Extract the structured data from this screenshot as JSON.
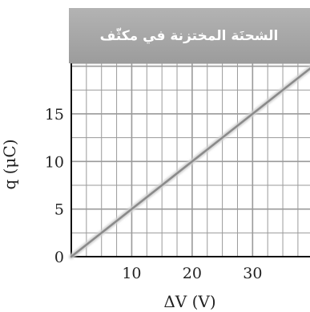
{
  "chart_data": {
    "type": "line",
    "title": "الشحنَة المختزنة في مكثّف",
    "xlabel": "ΔV (V)",
    "ylabel": "q (μC)",
    "xlim": [
      0,
      40
    ],
    "ylim": [
      0,
      20
    ],
    "x_ticks": [
      "10",
      "20",
      "30"
    ],
    "y_ticks": [
      "0",
      "5",
      "10",
      "15"
    ],
    "grid": true,
    "series": [
      {
        "x": [
          0,
          40
        ],
        "y": [
          0,
          20
        ]
      }
    ],
    "colors": {
      "line": "#8a8a8a",
      "title_bg": "#a6a6a6",
      "grid": "#9a9a9a",
      "axis": "#111111"
    }
  }
}
